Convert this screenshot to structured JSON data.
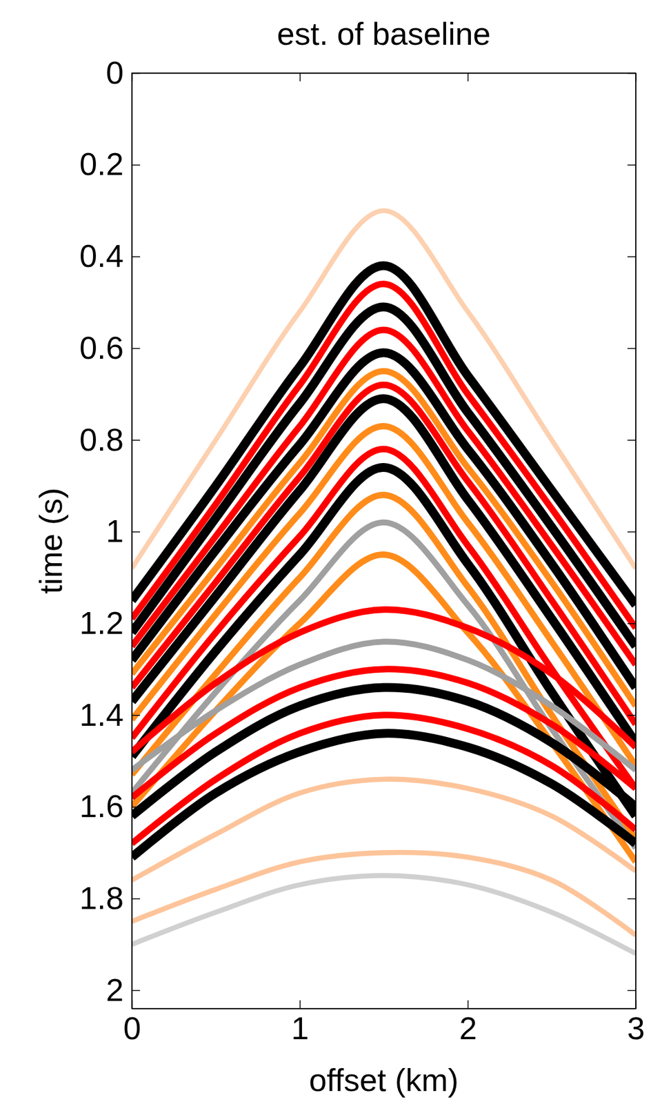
{
  "chart_data": {
    "type": "line",
    "title": "est. of baseline",
    "x_label": "offset (km)",
    "y_label": "time (s)",
    "x": [
      0,
      0.5,
      1,
      1.5,
      2,
      2.5,
      3
    ],
    "xlim": [
      0,
      3
    ],
    "xticks": [
      0,
      1,
      2,
      3
    ],
    "ylim": [
      0,
      2.04
    ],
    "yticks": [
      0,
      0.2,
      0.4,
      0.6,
      0.8,
      1,
      1.2,
      1.4,
      1.6,
      1.8,
      2
    ],
    "series": [
      {
        "color": "#fdd0b0",
        "values": [
          1.08,
          0.8,
          0.52,
          0.3,
          0.52,
          0.8,
          1.08
        ]
      },
      {
        "color": "#000000",
        "values": [
          1.15,
          0.9,
          0.64,
          0.42,
          0.66,
          0.91,
          1.16
        ]
      },
      {
        "color": "#ff0000",
        "values": [
          1.19,
          0.94,
          0.68,
          0.46,
          0.7,
          0.95,
          1.21
        ]
      },
      {
        "color": "#000000",
        "values": [
          1.22,
          0.97,
          0.72,
          0.51,
          0.74,
          0.99,
          1.25
        ]
      },
      {
        "color": "#ff0000",
        "values": [
          1.25,
          1.01,
          0.77,
          0.56,
          0.78,
          1.03,
          1.29
        ]
      },
      {
        "color": "#000000",
        "values": [
          1.28,
          1.04,
          0.81,
          0.61,
          0.82,
          1.07,
          1.34
        ]
      },
      {
        "color": "#ff8c1a",
        "values": [
          1.31,
          1.08,
          0.85,
          0.65,
          0.86,
          1.11,
          1.38
        ]
      },
      {
        "color": "#ff0000",
        "values": [
          1.34,
          1.11,
          0.88,
          0.68,
          0.89,
          1.15,
          1.42
        ]
      },
      {
        "color": "#000000",
        "values": [
          1.37,
          1.14,
          0.91,
          0.71,
          0.93,
          1.19,
          1.46
        ]
      },
      {
        "color": "#ff8c1a",
        "values": [
          1.41,
          1.18,
          0.96,
          0.77,
          0.98,
          1.24,
          1.51
        ]
      },
      {
        "color": "#ff0000",
        "values": [
          1.45,
          1.22,
          1.01,
          0.82,
          1.03,
          1.3,
          1.56
        ]
      },
      {
        "color": "#000000",
        "values": [
          1.49,
          1.26,
          1.05,
          0.86,
          1.07,
          1.35,
          1.62
        ]
      },
      {
        "color": "#ff8c1a",
        "values": [
          1.53,
          1.31,
          1.1,
          0.92,
          1.12,
          1.4,
          1.67
        ]
      },
      {
        "color": "#a0a0a0",
        "values": [
          1.57,
          1.35,
          1.15,
          0.98,
          1.16,
          1.43,
          1.69
        ]
      },
      {
        "color": "#ff8c1a",
        "values": [
          1.6,
          1.39,
          1.2,
          1.05,
          1.22,
          1.46,
          1.72
        ]
      },
      {
        "color": "#ff0000",
        "values": [
          1.48,
          1.33,
          1.22,
          1.17,
          1.21,
          1.31,
          1.47
        ]
      },
      {
        "color": "#a0a0a0",
        "values": [
          1.52,
          1.39,
          1.29,
          1.24,
          1.28,
          1.38,
          1.52
        ]
      },
      {
        "color": "#ff0000",
        "values": [
          1.58,
          1.44,
          1.34,
          1.3,
          1.33,
          1.42,
          1.56
        ]
      },
      {
        "color": "#000000",
        "values": [
          1.62,
          1.48,
          1.38,
          1.34,
          1.37,
          1.46,
          1.6
        ]
      },
      {
        "color": "#ff0000",
        "values": [
          1.68,
          1.54,
          1.44,
          1.4,
          1.43,
          1.51,
          1.65
        ]
      },
      {
        "color": "#000000",
        "values": [
          1.71,
          1.57,
          1.48,
          1.44,
          1.47,
          1.55,
          1.68
        ]
      },
      {
        "color": "#fdc49a",
        "values": [
          1.76,
          1.66,
          1.57,
          1.54,
          1.56,
          1.62,
          1.74
        ]
      },
      {
        "color": "#fdc49a",
        "values": [
          1.85,
          1.78,
          1.72,
          1.7,
          1.71,
          1.76,
          1.88
        ]
      },
      {
        "color": "#d0d0d0",
        "values": [
          1.9,
          1.83,
          1.77,
          1.75,
          1.77,
          1.83,
          1.92
        ]
      }
    ]
  }
}
